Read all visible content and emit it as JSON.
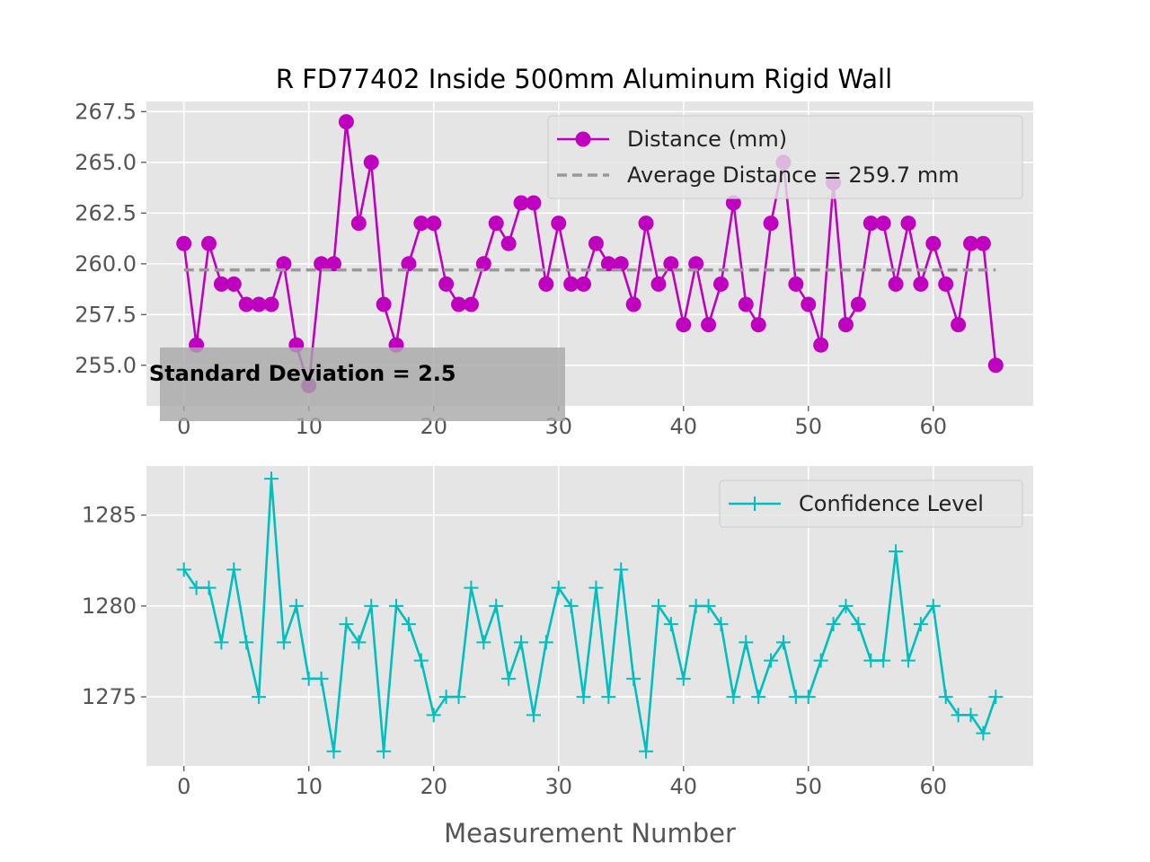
{
  "figure": {
    "title": "R FD77402 Inside 500mm Aluminum Rigid Wall"
  },
  "chart_data": [
    {
      "type": "line",
      "title": "R FD77402 Inside 500mm Aluminum Rigid Wall",
      "xlabel": "",
      "ylabel": "",
      "xlim": [
        -3,
        68
      ],
      "ylim": [
        253,
        268
      ],
      "x_ticks": [
        0,
        10,
        20,
        30,
        40,
        50,
        60
      ],
      "y_ticks": [
        255.0,
        257.5,
        260.0,
        262.5,
        265.0,
        267.5
      ],
      "x_tick_labels": [
        "0",
        "10",
        "20",
        "30",
        "40",
        "50",
        "60"
      ],
      "y_tick_labels": [
        "255.0",
        "257.5",
        "260.0",
        "262.5",
        "265.0",
        "267.5"
      ],
      "grid": true,
      "legend_position": "top-right",
      "series": [
        {
          "name": "Distance (mm)",
          "color": "#bf00bf",
          "marker": "circle",
          "values": [
            261,
            256,
            261,
            259,
            259,
            258,
            258,
            258,
            260,
            256,
            254,
            260,
            260,
            267,
            262,
            265,
            258,
            256,
            260,
            262,
            262,
            259,
            258,
            258,
            260,
            262,
            261,
            263,
            263,
            259,
            262,
            259,
            259,
            261,
            260,
            260,
            258,
            262,
            259,
            260,
            257,
            260,
            257,
            259,
            263,
            258,
            257,
            262,
            265,
            259,
            258,
            256,
            264,
            257,
            258,
            262,
            262,
            259,
            262,
            259,
            261,
            259,
            257,
            261,
            261,
            255
          ]
        },
        {
          "name": "Average Distance = 259.7 mm",
          "color": "#999999",
          "style": "dashed",
          "x": [
            0,
            65
          ],
          "values": [
            259.7,
            259.7
          ]
        }
      ],
      "annotation": {
        "text": "Standard Deviation = 2.5",
        "x": 9.5,
        "y": 254.6
      }
    },
    {
      "type": "line",
      "xlabel": "Measurement Number",
      "ylabel": "",
      "xlim": [
        -3,
        68
      ],
      "ylim": [
        1271.2,
        1287.7
      ],
      "x_ticks": [
        0,
        10,
        20,
        30,
        40,
        50,
        60
      ],
      "y_ticks": [
        1275,
        1280,
        1285
      ],
      "x_tick_labels": [
        "0",
        "10",
        "20",
        "30",
        "40",
        "50",
        "60"
      ],
      "y_tick_labels": [
        "1275",
        "1280",
        "1285"
      ],
      "grid": true,
      "legend_position": "top-right",
      "series": [
        {
          "name": "Confidence Level",
          "color": "#00bfbf",
          "marker": "plus",
          "values": [
            1282,
            1281,
            1281,
            1278,
            1282,
            1278,
            1275,
            1287,
            1278,
            1280,
            1276,
            1276,
            1272,
            1279,
            1278,
            1280,
            1272,
            1280,
            1279,
            1277,
            1274,
            1275,
            1275,
            1281,
            1278,
            1280,
            1276,
            1278,
            1274,
            1278,
            1281,
            1280,
            1275,
            1281,
            1275,
            1282,
            1276,
            1272,
            1280,
            1279,
            1276,
            1280,
            1280,
            1279,
            1275,
            1278,
            1275,
            1277,
            1278,
            1275,
            1275,
            1277,
            1279,
            1280,
            1279,
            1277,
            1277,
            1283,
            1277,
            1279,
            1280,
            1275,
            1274,
            1274,
            1273,
            1275
          ]
        }
      ]
    }
  ]
}
